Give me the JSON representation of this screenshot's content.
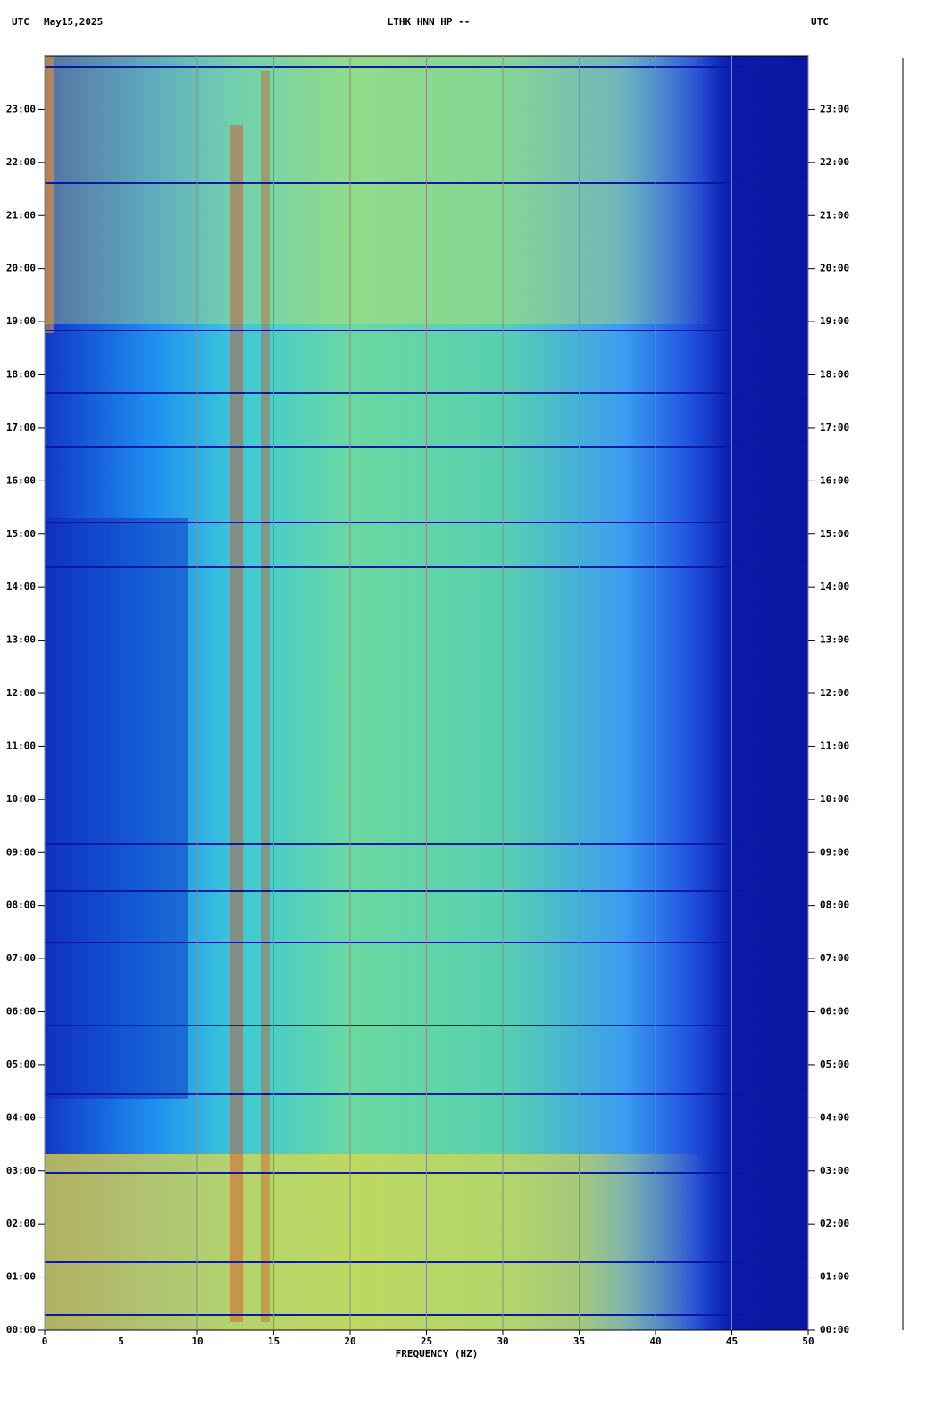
{
  "chart_data": {
    "type": "spectrogram",
    "title": "LTHK HNN HP --",
    "top_left_label": "UTC",
    "date": "May15,2025",
    "top_right_label": "UTC",
    "x_label": "FREQUENCY (HZ)",
    "xlim": [
      0,
      50
    ],
    "xticks": [
      0,
      5,
      10,
      15,
      20,
      25,
      30,
      35,
      40,
      45,
      50
    ],
    "ylim": [
      0,
      24
    ],
    "yticks": [
      {
        "value": 0,
        "label": "00:00"
      },
      {
        "value": 1,
        "label": "01:00"
      },
      {
        "value": 2,
        "label": "02:00"
      },
      {
        "value": 3,
        "label": "03:00"
      },
      {
        "value": 4,
        "label": "04:00"
      },
      {
        "value": 5,
        "label": "05:00"
      },
      {
        "value": 6,
        "label": "06:00"
      },
      {
        "value": 7,
        "label": "07:00"
      },
      {
        "value": 8,
        "label": "08:00"
      },
      {
        "value": 9,
        "label": "09:00"
      },
      {
        "value": 10,
        "label": "10:00"
      },
      {
        "value": 11,
        "label": "11:00"
      },
      {
        "value": 12,
        "label": "12:00"
      },
      {
        "value": 13,
        "label": "13:00"
      },
      {
        "value": 14,
        "label": "14:00"
      },
      {
        "value": 15,
        "label": "15:00"
      },
      {
        "value": 16,
        "label": "16:00"
      },
      {
        "value": 17,
        "label": "17:00"
      },
      {
        "value": 18,
        "label": "18:00"
      },
      {
        "value": 19,
        "label": "19:00"
      },
      {
        "value": 20,
        "label": "20:00"
      },
      {
        "value": 21,
        "label": "21:00"
      },
      {
        "value": 22,
        "label": "22:00"
      },
      {
        "value": 23,
        "label": "23:00"
      }
    ],
    "grid": true
  }
}
